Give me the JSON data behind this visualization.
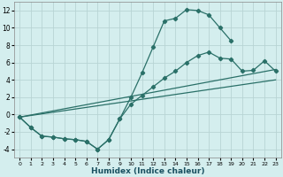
{
  "xlabel": "Humidex (Indice chaleur)",
  "bg_color": "#d4eeee",
  "grid_color": "#b8d4d4",
  "line_color": "#2a7068",
  "xlim": [
    -0.5,
    23.5
  ],
  "ylim": [
    -5,
    13
  ],
  "xticks": [
    0,
    1,
    2,
    3,
    4,
    5,
    6,
    7,
    8,
    9,
    10,
    11,
    12,
    13,
    14,
    15,
    16,
    17,
    18,
    19,
    20,
    21,
    22,
    23
  ],
  "yticks": [
    -4,
    -2,
    0,
    2,
    4,
    6,
    8,
    10,
    12
  ],
  "curve1_x": [
    0,
    1,
    2,
    3,
    4,
    5,
    6,
    7,
    8,
    9,
    10,
    11,
    12,
    13,
    14,
    15,
    16,
    17,
    18,
    19
  ],
  "curve1_y": [
    -0.3,
    -1.5,
    -2.5,
    -2.6,
    -2.8,
    -2.9,
    -3.1,
    -4.0,
    -2.9,
    -0.5,
    2.0,
    4.8,
    7.8,
    10.8,
    11.1,
    12.1,
    12.0,
    11.5,
    10.0,
    8.5
  ],
  "curve2_x": [
    0,
    1,
    2,
    3,
    4,
    5,
    6,
    7,
    8,
    9,
    10,
    11,
    12,
    13,
    14,
    15,
    16,
    17,
    18,
    19,
    20,
    21,
    22,
    23
  ],
  "curve2_y": [
    -0.3,
    -1.5,
    -2.5,
    -2.6,
    -2.8,
    -2.9,
    -3.1,
    -4.0,
    -2.9,
    -0.5,
    1.2,
    2.2,
    3.2,
    4.2,
    5.0,
    6.0,
    6.8,
    7.2,
    6.5,
    6.4,
    5.0,
    5.1,
    6.2,
    5.0
  ],
  "line1_x": [
    0,
    23
  ],
  "line1_y": [
    -0.3,
    5.2
  ],
  "line2_x": [
    0,
    23
  ],
  "line2_y": [
    -0.3,
    4.0
  ]
}
